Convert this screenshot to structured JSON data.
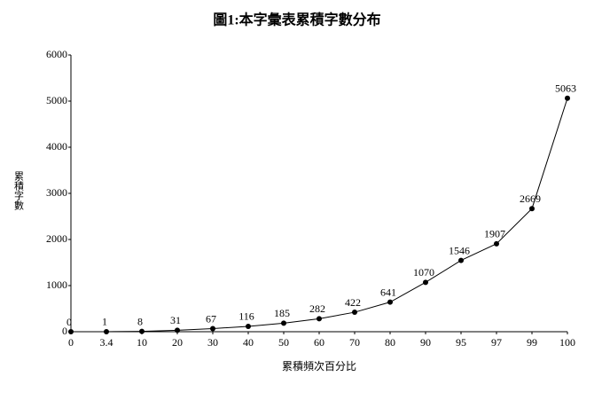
{
  "chart_data": {
    "type": "line",
    "title": "圖1:本字彙表累積字數分布",
    "x_label": "累積頻次百分比",
    "y_label": "累積字數",
    "categories": [
      "0",
      "3.4",
      "10",
      "20",
      "30",
      "40",
      "50",
      "60",
      "70",
      "80",
      "90",
      "95",
      "97",
      "99",
      "100"
    ],
    "values": [
      0,
      1,
      8,
      31,
      67,
      116,
      185,
      282,
      422,
      641,
      1070,
      1546,
      1907,
      2669,
      5063
    ],
    "color": "#000000",
    "ylim": [
      0,
      6000
    ],
    "yticks": [
      0,
      1000,
      2000,
      3000,
      4000,
      5000,
      6000
    ],
    "grid": false
  }
}
